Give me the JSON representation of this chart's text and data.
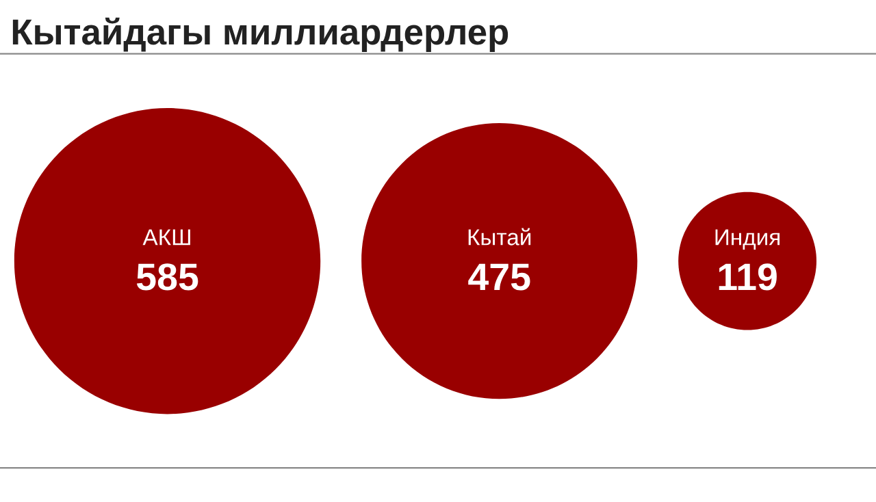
{
  "chart_data": {
    "type": "other",
    "title": "Кытайдагы миллиардерлер",
    "categories": [
      "АКШ",
      "Кытай",
      "Индия"
    ],
    "values": [
      585,
      475,
      119
    ],
    "color": "#990000",
    "data_labels": true
  }
}
